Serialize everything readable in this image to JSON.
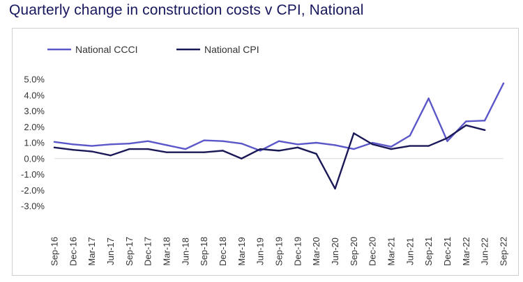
{
  "chart_data": {
    "type": "line",
    "title": "Quarterly change in construction costs v CPI, National",
    "categories": [
      "Sep-16",
      "Dec-16",
      "Mar-17",
      "Jun-17",
      "Sep-17",
      "Dec-17",
      "Mar-18",
      "Jun-18",
      "Sep-18",
      "Dec-18",
      "Mar-19",
      "Jun-19",
      "Sep-19",
      "Dec-19",
      "Mar-20",
      "Jun-20",
      "Sep-20",
      "Dec-20",
      "Mar-21",
      "Jun-21",
      "Sep-21",
      "Dec-21",
      "Mar-22",
      "Jun-22",
      "Sep-22"
    ],
    "series": [
      {
        "name": "National CCCI",
        "color": "#5b57c9",
        "values": [
          1.05,
          0.9,
          0.8,
          0.9,
          0.95,
          1.1,
          0.85,
          0.6,
          1.15,
          1.1,
          0.95,
          0.5,
          1.1,
          0.9,
          1.0,
          0.85,
          0.6,
          1.0,
          0.75,
          1.45,
          3.8,
          1.1,
          2.35,
          2.4,
          4.75
        ]
      },
      {
        "name": "National CPI",
        "color": "#1a1958",
        "values": [
          0.7,
          0.55,
          0.45,
          0.2,
          0.6,
          0.6,
          0.4,
          0.4,
          0.4,
          0.5,
          0.0,
          0.6,
          0.5,
          0.7,
          0.3,
          -1.9,
          1.6,
          0.9,
          0.6,
          0.8,
          0.8,
          1.3,
          2.1,
          1.8,
          null
        ]
      }
    ],
    "ylim": [
      -3.0,
      5.0
    ],
    "yticks": [
      "5.0%",
      "4.0%",
      "3.0%",
      "2.0%",
      "1.0%",
      "0.0%",
      "-1.0%",
      "-2.0%",
      "-3.0%"
    ],
    "ytick_values": [
      5,
      4,
      3,
      2,
      1,
      0,
      -1,
      -2,
      -3
    ],
    "grid": false,
    "legend_position": "top-left"
  }
}
